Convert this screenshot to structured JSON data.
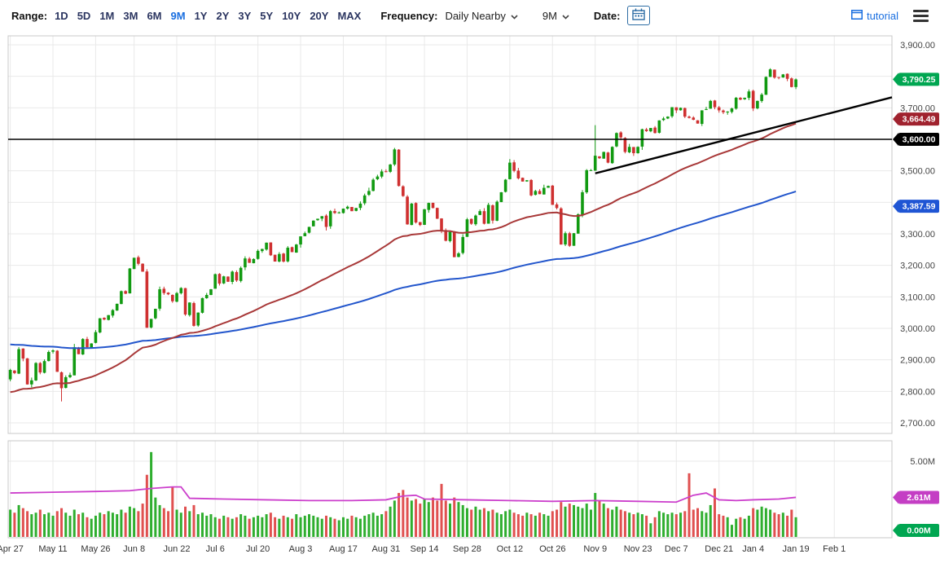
{
  "toolbar": {
    "range_label": "Range:",
    "ranges": [
      "1D",
      "5D",
      "1M",
      "3M",
      "6M",
      "9M",
      "1Y",
      "2Y",
      "3Y",
      "5Y",
      "10Y",
      "20Y",
      "MAX"
    ],
    "selected_range": "9M",
    "frequency_label": "Frequency:",
    "frequency_value": "Daily Nearby",
    "range_select_value": "9M",
    "date_label": "Date:",
    "tutorial_label": "tutorial"
  },
  "colors": {
    "candle_up": "#119a11",
    "candle_down": "#cf3030",
    "volume_up": "#2fae2f",
    "volume_down": "#e05050",
    "ma_fast": "#a83838",
    "ma_slow": "#2356cc",
    "trend": "#000000",
    "volume_avg": "#cc3fcc",
    "grid": "#e9e9e9",
    "pane_border": "#c8c8c8",
    "axis_text": "#444444"
  },
  "chart_data": {
    "type": "candlestick",
    "ylim": [
      2666,
      3928
    ],
    "grid_step": 100,
    "price_ticks": [
      {
        "v": 3900,
        "label": "3,900.00"
      },
      {
        "v": 3700,
        "label": "3,700.00"
      },
      {
        "v": 3500,
        "label": "3,500.00"
      },
      {
        "v": 3300,
        "label": "3,300.00"
      },
      {
        "v": 3200,
        "label": "3,200.00"
      },
      {
        "v": 3100,
        "label": "3,100.00"
      },
      {
        "v": 3000,
        "label": "3,000.00"
      },
      {
        "v": 2900,
        "label": "2,900.00"
      },
      {
        "v": 2800,
        "label": "2,800.00"
      },
      {
        "v": 2700,
        "label": "2,700.00"
      }
    ],
    "xticks": [
      {
        "label": "Apr 27",
        "i": 0
      },
      {
        "label": "May 11",
        "i": 10
      },
      {
        "label": "May 26",
        "i": 20
      },
      {
        "label": "Jun 8",
        "i": 29
      },
      {
        "label": "Jun 22",
        "i": 39
      },
      {
        "label": "Jul 6",
        "i": 48
      },
      {
        "label": "Jul 20",
        "i": 58
      },
      {
        "label": "Aug 3",
        "i": 68
      },
      {
        "label": "Aug 17",
        "i": 78
      },
      {
        "label": "Aug 31",
        "i": 88
      },
      {
        "label": "Sep 14",
        "i": 97
      },
      {
        "label": "Sep 28",
        "i": 107
      },
      {
        "label": "Oct 12",
        "i": 117
      },
      {
        "label": "Oct 26",
        "i": 127
      },
      {
        "label": "Nov 9",
        "i": 137
      },
      {
        "label": "Nov 23",
        "i": 147
      },
      {
        "label": "Dec 7",
        "i": 156
      },
      {
        "label": "Dec 21",
        "i": 166
      },
      {
        "label": "Jan 4",
        "i": 174
      },
      {
        "label": "Jan 19",
        "i": 184
      },
      {
        "label": "Feb 1",
        "i": 193
      }
    ],
    "closes": [
      2868,
      2858,
      2934,
      2904,
      2822,
      2835,
      2890,
      2860,
      2896,
      2925,
      2930,
      2862,
      2810,
      2845,
      2852,
      2940,
      2918,
      2966,
      2940,
      2952,
      2988,
      3032,
      3028,
      3042,
      3058,
      3078,
      3118,
      3110,
      3190,
      3224,
      3205,
      3180,
      3002,
      3030,
      3062,
      3124,
      3112,
      3108,
      3086,
      3112,
      3128,
      3044,
      3082,
      3008,
      3050,
      3096,
      3106,
      3124,
      3172,
      3142,
      3165,
      3148,
      3180,
      3152,
      3192,
      3222,
      3208,
      3220,
      3246,
      3252,
      3272,
      3232,
      3212,
      3236,
      3212,
      3256,
      3242,
      3266,
      3292,
      3302,
      3322,
      3342,
      3348,
      3356,
      3322,
      3372,
      3366,
      3368,
      3380,
      3386,
      3372,
      3382,
      3396,
      3422,
      3436,
      3472,
      3482,
      3498,
      3496,
      3520,
      3568,
      3452,
      3420,
      3330,
      3396,
      3336,
      3328,
      3378,
      3398,
      3382,
      3348,
      3310,
      3278,
      3306,
      3226,
      3238,
      3290,
      3346,
      3332,
      3358,
      3372,
      3332,
      3392,
      3342,
      3402,
      3432,
      3472,
      3526,
      3500,
      3476,
      3466,
      3470,
      3422,
      3436,
      3426,
      3446,
      3452,
      3392,
      3382,
      3266,
      3302,
      3262,
      3302,
      3362,
      3432,
      3502,
      3502,
      3548,
      3540,
      3560,
      3526,
      3576,
      3620,
      3606,
      3560,
      3576,
      3556,
      3576,
      3632,
      3626,
      3636,
      3620,
      3660,
      3666,
      3672,
      3702,
      3692,
      3700,
      3672,
      3668,
      3662,
      3650,
      3692,
      3696,
      3722,
      3702,
      3692,
      3686,
      3688,
      3698,
      3732,
      3726,
      3732,
      3752,
      3698,
      3722,
      3742,
      3798,
      3822,
      3796,
      3796,
      3806,
      3792,
      3766,
      3790.25
    ],
    "volumes_m": [
      1.8,
      1.6,
      2.1,
      1.9,
      1.7,
      1.5,
      1.6,
      1.8,
      1.5,
      1.6,
      1.4,
      1.7,
      1.9,
      1.6,
      1.4,
      1.8,
      1.5,
      1.6,
      1.3,
      1.2,
      1.4,
      1.6,
      1.5,
      1.7,
      1.6,
      1.5,
      1.8,
      1.6,
      2.0,
      1.9,
      1.7,
      2.2,
      4.1,
      5.6,
      2.6,
      2.1,
      1.9,
      1.7,
      3.3,
      1.8,
      1.6,
      2.0,
      1.7,
      2.1,
      1.5,
      1.6,
      1.4,
      1.5,
      1.3,
      1.2,
      1.4,
      1.3,
      1.2,
      1.3,
      1.5,
      1.4,
      1.2,
      1.3,
      1.4,
      1.3,
      1.5,
      1.6,
      1.3,
      1.2,
      1.4,
      1.3,
      1.2,
      1.5,
      1.3,
      1.4,
      1.5,
      1.4,
      1.3,
      1.2,
      1.4,
      1.3,
      1.2,
      1.1,
      1.3,
      1.2,
      1.4,
      1.3,
      1.2,
      1.4,
      1.5,
      1.6,
      1.4,
      1.5,
      1.7,
      2.0,
      2.4,
      2.9,
      3.1,
      2.6,
      2.4,
      2.5,
      2.2,
      2.5,
      2.3,
      2.6,
      2.4,
      3.5,
      2.4,
      2.2,
      2.6,
      2.3,
      2.1,
      1.9,
      1.8,
      2.0,
      1.8,
      1.9,
      1.7,
      1.8,
      1.6,
      1.5,
      1.7,
      1.8,
      1.6,
      1.5,
      1.4,
      1.6,
      1.5,
      1.4,
      1.6,
      1.5,
      1.4,
      1.7,
      1.8,
      2.3,
      2.0,
      2.2,
      2.1,
      2.0,
      1.9,
      2.2,
      1.8,
      2.9,
      2.4,
      2.2,
      1.9,
      1.8,
      2.0,
      1.8,
      1.7,
      1.6,
      1.5,
      1.6,
      1.5,
      1.4,
      0.9,
      1.3,
      1.7,
      1.6,
      1.5,
      1.6,
      1.5,
      1.6,
      1.7,
      4.2,
      1.8,
      1.9,
      1.7,
      1.6,
      2.1,
      3.2,
      1.5,
      1.4,
      1.3,
      0.8,
      1.2,
      1.3,
      1.2,
      1.4,
      1.9,
      1.8,
      2.0,
      1.9,
      1.8,
      1.6,
      1.5,
      1.6,
      1.4,
      1.8,
      1.3
    ],
    "wick_overrides": {
      "12": {
        "low": 2768
      },
      "137": {
        "high": 3645
      }
    },
    "overlays": {
      "horizontal_line": {
        "value": 3600,
        "label": "3,600.00"
      },
      "trend_line": {
        "from_i": 137,
        "from_price": 3492,
        "to_i": 207,
        "to_price": 3735
      },
      "ma_fast": {
        "start": 2795,
        "alpha": 0.035,
        "last_value": 3664.49,
        "last_label": "3,664.49"
      },
      "ma_slow": {
        "start": 2950,
        "alpha": 0.012,
        "last_value": 3387.59,
        "last_label": "3,387.59"
      },
      "volume_avg": {
        "last_value": 2.61,
        "last_label": "2.61M",
        "points": [
          [
            0,
            2.9
          ],
          [
            10,
            2.95
          ],
          [
            20,
            3.0
          ],
          [
            28,
            3.05
          ],
          [
            33,
            3.2
          ],
          [
            38,
            3.3
          ],
          [
            40,
            3.3
          ],
          [
            42,
            2.55
          ],
          [
            50,
            2.5
          ],
          [
            60,
            2.45
          ],
          [
            70,
            2.4
          ],
          [
            80,
            2.4
          ],
          [
            88,
            2.45
          ],
          [
            92,
            2.7
          ],
          [
            95,
            2.75
          ],
          [
            97,
            2.5
          ],
          [
            107,
            2.45
          ],
          [
            117,
            2.4
          ],
          [
            127,
            2.35
          ],
          [
            137,
            2.4
          ],
          [
            147,
            2.35
          ],
          [
            156,
            2.3
          ],
          [
            160,
            2.75
          ],
          [
            163,
            2.9
          ],
          [
            166,
            2.45
          ],
          [
            170,
            2.4
          ],
          [
            174,
            2.45
          ],
          [
            180,
            2.5
          ],
          [
            184,
            2.61
          ]
        ]
      }
    },
    "last_price": {
      "value": 3790.25,
      "label": "3,790.25"
    },
    "volume_axis": {
      "tick_value": 5,
      "tick_label": "5.00M",
      "zero_label": "0.00M"
    },
    "price_badges": [
      {
        "label": "3,790.25",
        "value": 3790.25,
        "color": "#00a651",
        "name": "last-price-badge"
      },
      {
        "label": "3,664.49",
        "value": 3664.49,
        "color": "#a0222e",
        "name": "ma-fast-badge"
      },
      {
        "label": "3,600.00",
        "value": 3600,
        "color": "#000000",
        "name": "hline-badge"
      },
      {
        "label": "3,387.59",
        "value": 3387.59,
        "color": "#1f55d4",
        "name": "ma-slow-badge"
      }
    ],
    "volume_badges": [
      {
        "label": "2.61M",
        "value": 2.61,
        "color": "#c43ec4",
        "name": "volume-avg-badge"
      },
      {
        "label": "0.00M",
        "value": 0,
        "color": "#00a651",
        "name": "volume-zero-badge"
      }
    ]
  }
}
